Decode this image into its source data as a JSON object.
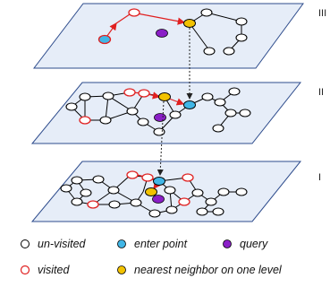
{
  "levels": [
    {
      "label": "III"
    },
    {
      "label": "II"
    },
    {
      "label": "I"
    }
  ],
  "legend": [
    {
      "key": "unvisited",
      "label": "un-visited"
    },
    {
      "key": "enter",
      "label": "enter point"
    },
    {
      "key": "query",
      "label": "query"
    },
    {
      "key": "visited",
      "label": "visited"
    },
    {
      "key": "nearest",
      "label": "nearest neighbor on one level"
    }
  ],
  "colors": {
    "plane_fill": "#e6edf8",
    "plane_stroke": "#2e4c8c",
    "edge": "#000000",
    "search_path": "#e02020",
    "unvisited_fill": "#ffffff",
    "unvisited_stroke": "#000000",
    "visited_stroke": "#e02020",
    "enter_fill": "#41b6e6",
    "query_fill": "#8a1fc7",
    "nearest_fill": "#f2c200"
  }
}
